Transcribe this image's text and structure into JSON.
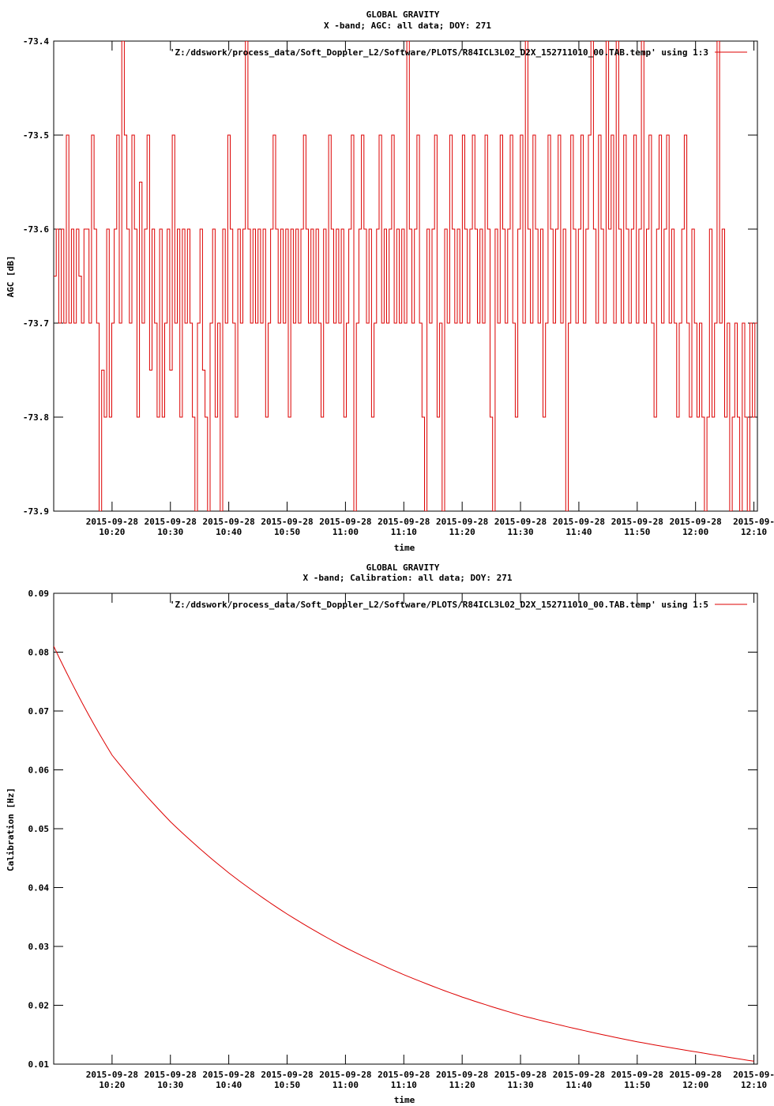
{
  "chart_data": [
    {
      "type": "line",
      "title": "GLOBAL GRAVITY",
      "subtitle": "X -band; AGC: all data; DOY: 271",
      "xlabel": "time",
      "ylabel": "AGC [dB]",
      "ylim": [
        -73.9,
        -73.4
      ],
      "y_ticks": [
        "-73.4",
        "-73.5",
        "-73.6",
        "-73.7",
        "-73.8",
        "-73.9"
      ],
      "y_tick_values": [
        -73.4,
        -73.5,
        -73.6,
        -73.7,
        -73.8,
        -73.9
      ],
      "x_range_minutes": [
        "10:10",
        "12:10"
      ],
      "x_ticks": [
        {
          "date": "2015-09-28",
          "time": "10:20"
        },
        {
          "date": "2015-09-28",
          "time": "10:30"
        },
        {
          "date": "2015-09-28",
          "time": "10:40"
        },
        {
          "date": "2015-09-28",
          "time": "10:50"
        },
        {
          "date": "2015-09-28",
          "time": "11:00"
        },
        {
          "date": "2015-09-28",
          "time": "11:10"
        },
        {
          "date": "2015-09-28",
          "time": "11:20"
        },
        {
          "date": "2015-09-28",
          "time": "11:30"
        },
        {
          "date": "2015-09-28",
          "time": "11:40"
        },
        {
          "date": "2015-09-28",
          "time": "11:50"
        },
        {
          "date": "2015-09-28",
          "time": "12:00"
        },
        {
          "date": "2015-09-",
          "time": "12:10"
        }
      ],
      "legend_position": "top-right",
      "grid": false,
      "series": [
        {
          "name": "'Z:/ddswork/process_data/Soft_Doppler_L2/Software/PLOTS/R84ICL3L02_D2X_152711010_00.TAB.temp' using 1:3",
          "color": "#dd0000",
          "style": "steps",
          "values": [
            -73.65,
            -73.6,
            -73.7,
            -73.6,
            -73.7,
            -73.5,
            -73.7,
            -73.6,
            -73.7,
            -73.6,
            -73.65,
            -73.7,
            -73.6,
            -73.6,
            -73.7,
            -73.5,
            -73.6,
            -73.7,
            -73.9,
            -73.75,
            -73.8,
            -73.6,
            -73.8,
            -73.7,
            -73.6,
            -73.5,
            -73.7,
            -73.4,
            -73.5,
            -73.6,
            -73.7,
            -73.5,
            -73.6,
            -73.8,
            -73.55,
            -73.7,
            -73.6,
            -73.5,
            -73.75,
            -73.6,
            -73.7,
            -73.8,
            -73.6,
            -73.8,
            -73.7,
            -73.6,
            -73.75,
            -73.5,
            -73.7,
            -73.6,
            -73.8,
            -73.6,
            -73.7,
            -73.6,
            -73.7,
            -73.8,
            -73.9,
            -73.7,
            -73.6,
            -73.75,
            -73.8,
            -73.9,
            -73.7,
            -73.6,
            -73.8,
            -73.7,
            -73.9,
            -73.6,
            -73.7,
            -73.5,
            -73.6,
            -73.7,
            -73.8,
            -73.6,
            -73.7,
            -73.6,
            -73.4,
            -73.6,
            -73.7,
            -73.6,
            -73.7,
            -73.6,
            -73.7,
            -73.6,
            -73.8,
            -73.7,
            -73.6,
            -73.5,
            -73.6,
            -73.7,
            -73.6,
            -73.7,
            -73.6,
            -73.8,
            -73.6,
            -73.7,
            -73.6,
            -73.7,
            -73.6,
            -73.5,
            -73.6,
            -73.7,
            -73.6,
            -73.7,
            -73.6,
            -73.7,
            -73.8,
            -73.6,
            -73.7,
            -73.5,
            -73.6,
            -73.7,
            -73.6,
            -73.7,
            -73.6,
            -73.8,
            -73.7,
            -73.6,
            -73.5,
            -73.9,
            -73.7,
            -73.6,
            -73.5,
            -73.6,
            -73.7,
            -73.6,
            -73.8,
            -73.7,
            -73.6,
            -73.5,
            -73.7,
            -73.6,
            -73.7,
            -73.6,
            -73.5,
            -73.7,
            -73.6,
            -73.7,
            -73.6,
            -73.7,
            -73.4,
            -73.6,
            -73.7,
            -73.6,
            -73.5,
            -73.7,
            -73.8,
            -73.9,
            -73.6,
            -73.7,
            -73.6,
            -73.5,
            -73.8,
            -73.7,
            -73.9,
            -73.6,
            -73.7,
            -73.5,
            -73.6,
            -73.7,
            -73.6,
            -73.7,
            -73.5,
            -73.6,
            -73.7,
            -73.6,
            -73.5,
            -73.6,
            -73.7,
            -73.6,
            -73.7,
            -73.5,
            -73.6,
            -73.8,
            -73.9,
            -73.6,
            -73.7,
            -73.5,
            -73.6,
            -73.7,
            -73.6,
            -73.5,
            -73.7,
            -73.8,
            -73.6,
            -73.5,
            -73.7,
            -73.4,
            -73.6,
            -73.7,
            -73.5,
            -73.6,
            -73.7,
            -73.6,
            -73.8,
            -73.7,
            -73.5,
            -73.6,
            -73.7,
            -73.6,
            -73.5,
            -73.7,
            -73.6,
            -73.9,
            -73.7,
            -73.5,
            -73.6,
            -73.7,
            -73.6,
            -73.5,
            -73.7,
            -73.6,
            -73.5,
            -73.4,
            -73.6,
            -73.7,
            -73.5,
            -73.6,
            -73.7,
            -73.4,
            -73.6,
            -73.5,
            -73.7,
            -73.4,
            -73.6,
            -73.7,
            -73.5,
            -73.6,
            -73.7,
            -73.6,
            -73.5,
            -73.7,
            -73.6,
            -73.4,
            -73.7,
            -73.6,
            -73.5,
            -73.7,
            -73.8,
            -73.6,
            -73.5,
            -73.7,
            -73.6,
            -73.5,
            -73.7,
            -73.6,
            -73.7,
            -73.8,
            -73.7,
            -73.6,
            -73.5,
            -73.7,
            -73.8,
            -73.6,
            -73.7,
            -73.8,
            -73.7,
            -73.8,
            -73.9,
            -73.8,
            -73.6,
            -73.8,
            -73.7,
            -73.4,
            -73.7,
            -73.6,
            -73.8,
            -73.7,
            -73.9,
            -73.8,
            -73.7,
            -73.8,
            -73.9,
            -73.7,
            -73.8,
            -73.9,
            -73.7,
            -73.8,
            -73.7
          ]
        }
      ]
    },
    {
      "type": "line",
      "title": "GLOBAL GRAVITY",
      "subtitle": "X -band; Calibration: all data; DOY: 271",
      "xlabel": "time",
      "ylabel": "Calibration [Hz]",
      "ylim": [
        0.01,
        0.09
      ],
      "y_ticks": [
        "0.09",
        "0.08",
        "0.07",
        "0.06",
        "0.05",
        "0.04",
        "0.03",
        "0.02",
        "0.01"
      ],
      "y_tick_values": [
        0.09,
        0.08,
        0.07,
        0.06,
        0.05,
        0.04,
        0.03,
        0.02,
        0.01
      ],
      "x_range_minutes": [
        "10:10",
        "12:10"
      ],
      "x_ticks": [
        {
          "date": "2015-09-28",
          "time": "10:20"
        },
        {
          "date": "2015-09-28",
          "time": "10:30"
        },
        {
          "date": "2015-09-28",
          "time": "10:40"
        },
        {
          "date": "2015-09-28",
          "time": "10:50"
        },
        {
          "date": "2015-09-28",
          "time": "11:00"
        },
        {
          "date": "2015-09-28",
          "time": "11:10"
        },
        {
          "date": "2015-09-28",
          "time": "11:20"
        },
        {
          "date": "2015-09-28",
          "time": "11:30"
        },
        {
          "date": "2015-09-28",
          "time": "11:40"
        },
        {
          "date": "2015-09-28",
          "time": "11:50"
        },
        {
          "date": "2015-09-28",
          "time": "12:00"
        },
        {
          "date": "2015-09-",
          "time": "12:10"
        }
      ],
      "legend_position": "top-right",
      "grid": false,
      "series": [
        {
          "name": "'Z:/ddswork/process_data/Soft_Doppler_L2/Software/PLOTS/R84ICL3L02_D2X_152711010_00.TAB.temp' using 1:5",
          "color": "#dd0000",
          "style": "lines",
          "x": [
            "10:10",
            "10:20",
            "10:30",
            "10:40",
            "10:50",
            "11:00",
            "11:10",
            "11:20",
            "11:30",
            "11:40",
            "11:50",
            "12:00",
            "12:10"
          ],
          "values": [
            0.081,
            0.0625,
            0.0512,
            0.0425,
            0.0355,
            0.0298,
            0.0252,
            0.0214,
            0.0183,
            0.0159,
            0.0138,
            0.0121,
            0.0105
          ]
        }
      ]
    }
  ]
}
